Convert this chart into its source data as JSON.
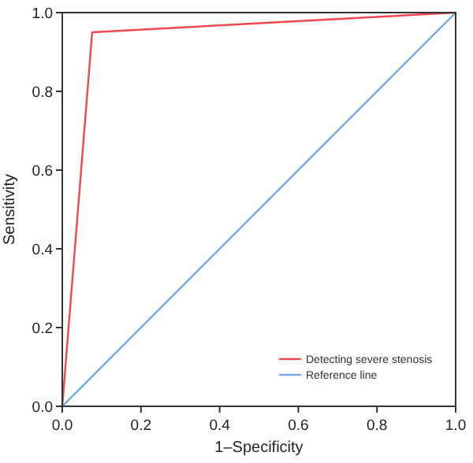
{
  "chart_data": {
    "type": "line",
    "xlabel": "1–Specificity",
    "ylabel": "Sensitivity",
    "xlim": [
      0,
      1
    ],
    "ylim": [
      0,
      1
    ],
    "xticks": [
      {
        "value": 0,
        "label": "0.0"
      },
      {
        "value": 0.2,
        "label": "0.2"
      },
      {
        "value": 0.4,
        "label": "0.4"
      },
      {
        "value": 0.6,
        "label": "0.6"
      },
      {
        "value": 0.8,
        "label": "0.8"
      },
      {
        "value": 1,
        "label": "1.0"
      }
    ],
    "yticks": [
      {
        "value": 0,
        "label": "0.0"
      },
      {
        "value": 0.2,
        "label": "0.2"
      },
      {
        "value": 0.4,
        "label": "0.4"
      },
      {
        "value": 0.6,
        "label": "0.6"
      },
      {
        "value": 0.8,
        "label": "0.8"
      },
      {
        "value": 1,
        "label": "1.0"
      }
    ],
    "legend": "bottom right",
    "series": [
      {
        "name": "Detecting severe stenosis",
        "color": "#f0484e",
        "x": [
          0,
          0.076,
          1
        ],
        "values": [
          0,
          0.95,
          1
        ]
      },
      {
        "name": "Reference line",
        "color": "#6fa8e8",
        "x": [
          0,
          1
        ],
        "values": [
          0,
          1
        ]
      }
    ]
  }
}
